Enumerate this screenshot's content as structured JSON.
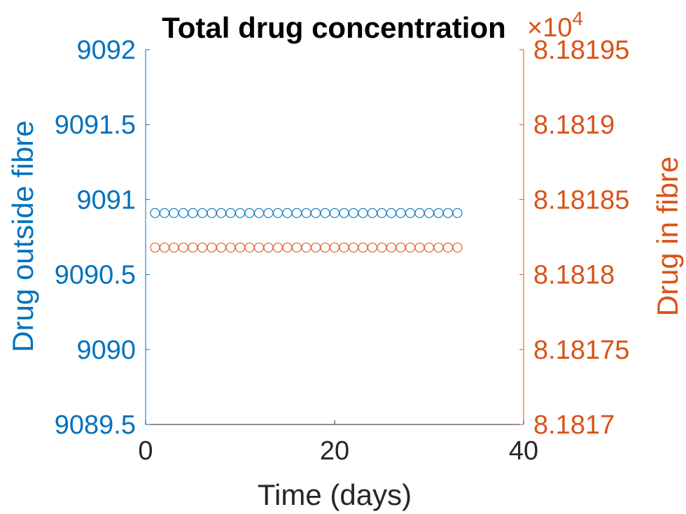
{
  "chart_data": {
    "type": "scatter",
    "title": "Total drug concentration",
    "xlabel": "Time (days)",
    "xlim": [
      0,
      40
    ],
    "xticks": [
      0,
      20,
      40
    ],
    "xtick_labels": [
      "0",
      "20",
      "40"
    ],
    "y_left": {
      "label": "Drug outside fibre",
      "lim": [
        9089.5,
        9092
      ],
      "ticks": [
        9089.5,
        9090,
        9090.5,
        9091,
        9091.5,
        9092
      ],
      "tick_labels": [
        "9089.5",
        "9090",
        "9090.5",
        "9091",
        "9091.5",
        "9092"
      ],
      "color": "#0072BD"
    },
    "y_right": {
      "label": "Drug in fibre",
      "lim": [
        81817,
        81819.5
      ],
      "ticks": [
        81817,
        81817.5,
        81818,
        81818.5,
        81819,
        81819.5
      ],
      "tick_labels": [
        "8.1817",
        "8.18175",
        "8.1818",
        "8.18185",
        "8.1819",
        "8.18195"
      ],
      "exponent_label": "×10",
      "exponent_power": "4",
      "color": "#D95319"
    },
    "series": [
      {
        "name": "Drug outside fibre",
        "axis": "left",
        "marker": "circle",
        "color": "#0072BD",
        "x": [
          1,
          2,
          3,
          4,
          5,
          6,
          7,
          8,
          9,
          10,
          11,
          12,
          13,
          14,
          15,
          16,
          17,
          18,
          19,
          20,
          21,
          22,
          23,
          24,
          25,
          26,
          27,
          28,
          29,
          30,
          31,
          32,
          33
        ],
        "y": [
          9090.91,
          9090.91,
          9090.91,
          9090.91,
          9090.91,
          9090.91,
          9090.91,
          9090.91,
          9090.91,
          9090.91,
          9090.91,
          9090.91,
          9090.91,
          9090.91,
          9090.91,
          9090.91,
          9090.91,
          9090.91,
          9090.91,
          9090.91,
          9090.91,
          9090.91,
          9090.91,
          9090.91,
          9090.91,
          9090.91,
          9090.91,
          9090.91,
          9090.91,
          9090.91,
          9090.91,
          9090.91,
          9090.91
        ]
      },
      {
        "name": "Drug in fibre",
        "axis": "right",
        "marker": "circle",
        "color": "#D95319",
        "x": [
          1,
          2,
          3,
          4,
          5,
          6,
          7,
          8,
          9,
          10,
          11,
          12,
          13,
          14,
          15,
          16,
          17,
          18,
          19,
          20,
          21,
          22,
          23,
          24,
          25,
          26,
          27,
          28,
          29,
          30,
          31,
          32,
          33
        ],
        "y": [
          81818.18,
          81818.18,
          81818.18,
          81818.18,
          81818.18,
          81818.18,
          81818.18,
          81818.18,
          81818.18,
          81818.18,
          81818.18,
          81818.18,
          81818.18,
          81818.18,
          81818.18,
          81818.18,
          81818.18,
          81818.18,
          81818.18,
          81818.18,
          81818.18,
          81818.18,
          81818.18,
          81818.18,
          81818.18,
          81818.18,
          81818.18,
          81818.18,
          81818.18,
          81818.18,
          81818.18,
          81818.18,
          81818.18
        ]
      }
    ],
    "grid": false,
    "legend": "none",
    "axis_color": "#262626"
  }
}
